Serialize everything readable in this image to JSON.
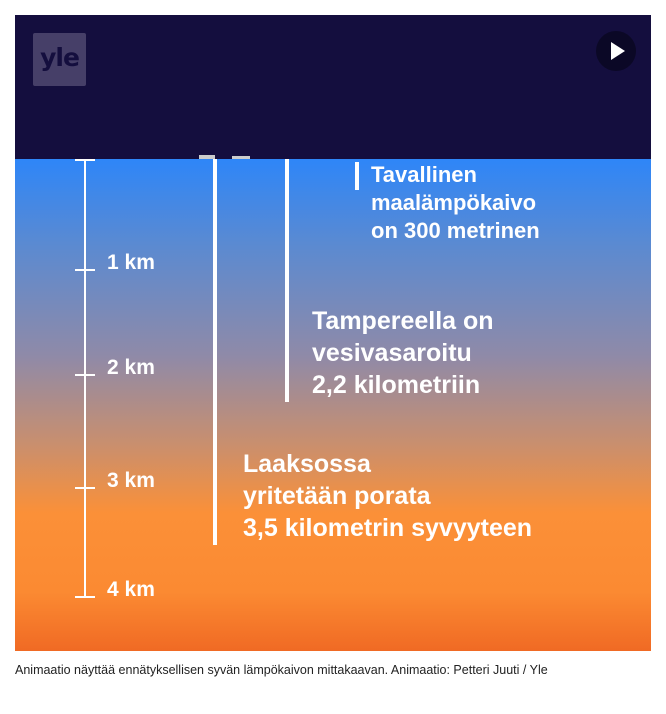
{
  "logo": "yle",
  "play_icon": "play-icon",
  "scale": {
    "labels": [
      "1 km",
      "2 km",
      "3 km",
      "4 km"
    ]
  },
  "wells": [
    {
      "depth_km": 0.3,
      "lines": [
        "Tavallinen",
        "maalämpökaivo",
        "on 300 metrinen"
      ]
    },
    {
      "depth_km": 2.2,
      "lines": [
        "Tampereella on",
        "vesivasaroitu",
        "2,2 kilometriin"
      ]
    },
    {
      "depth_km": 3.5,
      "lines": [
        "Laaksossa",
        "yritetään porata",
        "3,5 kilometrin syvyyteen"
      ]
    }
  ],
  "colors": {
    "sky": "#140e3e",
    "top": "#2e86f8",
    "bottom": "#f06a24"
  },
  "caption": "Animaatio näyttää ennätyksellisen syvän lämpökaivon mittakaavan. Animaatio: Petteri Juuti / Yle"
}
